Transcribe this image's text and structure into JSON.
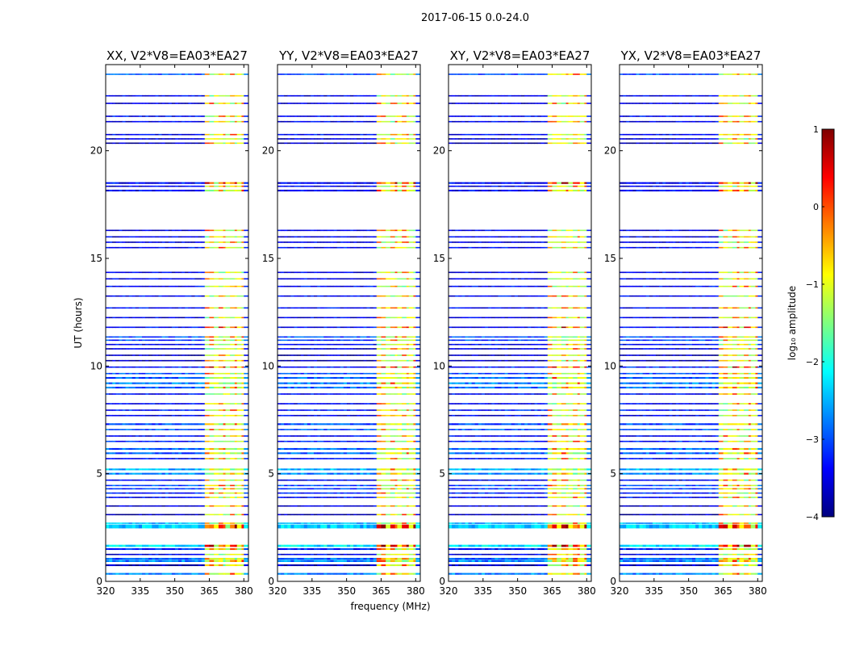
{
  "figure": {
    "suptitle": "2017-06-15 0.0-24.0",
    "xlabel": "frequency (MHz)",
    "ylabel": "UT (hours)"
  },
  "chart_data": {
    "type": "heatmap",
    "x_range": [
      320,
      382
    ],
    "y_range": [
      0,
      24
    ],
    "x_ticks": [
      320,
      335,
      350,
      365,
      380
    ],
    "y_ticks": [
      0,
      5,
      10,
      15,
      20
    ],
    "panels": [
      {
        "title": "XX, V2*V8=EA03*EA27",
        "pol": "XX",
        "band_offset": 0
      },
      {
        "title": "YY, V2*V8=EA03*EA27",
        "pol": "YY",
        "band_offset": 0
      },
      {
        "title": "XY, V2*V8=EA03*EA27",
        "pol": "XY",
        "band_offset": 0
      },
      {
        "title": "YX, V2*V8=EA03*EA27",
        "pol": "YX",
        "band_offset": 0
      }
    ],
    "time_rows": [
      {
        "t": 0.35,
        "level": 0.25,
        "w": 0.08
      },
      {
        "t": 0.75,
        "level": 0.05,
        "w": 0.08
      },
      {
        "t": 0.95,
        "level": 0.25,
        "w": 0.1
      },
      {
        "t": 1.05,
        "level": 0.22,
        "w": 0.08
      },
      {
        "t": 1.25,
        "level": 0.1,
        "w": 0.06
      },
      {
        "t": 1.5,
        "level": 0.15,
        "w": 0.08
      },
      {
        "t": 1.65,
        "level": 0.35,
        "w": 0.1,
        "hot": true
      },
      {
        "t": 2.55,
        "level": 0.32,
        "w": 0.18,
        "hot": true
      },
      {
        "t": 2.7,
        "level": 0.3,
        "w": 0.06
      },
      {
        "t": 3.1,
        "level": 0.05,
        "w": 0.06
      },
      {
        "t": 3.5,
        "level": 0.08,
        "w": 0.06
      },
      {
        "t": 3.9,
        "level": 0.12,
        "w": 0.06
      },
      {
        "t": 4.1,
        "level": 0.15,
        "w": 0.06
      },
      {
        "t": 4.3,
        "level": 0.18,
        "w": 0.06
      },
      {
        "t": 4.45,
        "level": 0.2,
        "w": 0.06
      },
      {
        "t": 4.7,
        "level": 0.1,
        "w": 0.06
      },
      {
        "t": 5.0,
        "level": 0.25,
        "w": 0.08
      },
      {
        "t": 5.2,
        "level": 0.3,
        "w": 0.08
      },
      {
        "t": 5.7,
        "level": 0.12,
        "w": 0.06
      },
      {
        "t": 5.95,
        "level": 0.22,
        "w": 0.08
      },
      {
        "t": 6.15,
        "level": 0.22,
        "w": 0.08
      },
      {
        "t": 6.5,
        "level": 0.15,
        "w": 0.06
      },
      {
        "t": 6.75,
        "level": 0.12,
        "w": 0.06
      },
      {
        "t": 7.05,
        "level": 0.2,
        "w": 0.06
      },
      {
        "t": 7.3,
        "level": 0.2,
        "w": 0.08
      },
      {
        "t": 7.7,
        "level": 0.1,
        "w": 0.06
      },
      {
        "t": 7.95,
        "level": 0.15,
        "w": 0.06
      },
      {
        "t": 8.25,
        "level": 0.12,
        "w": 0.06
      },
      {
        "t": 8.7,
        "level": 0.12,
        "w": 0.06
      },
      {
        "t": 9.0,
        "level": 0.22,
        "w": 0.08
      },
      {
        "t": 9.2,
        "level": 0.25,
        "w": 0.08
      },
      {
        "t": 9.45,
        "level": 0.22,
        "w": 0.08
      },
      {
        "t": 9.65,
        "level": 0.2,
        "w": 0.06
      },
      {
        "t": 9.95,
        "level": 0.15,
        "w": 0.06,
        "hot": true
      },
      {
        "t": 10.25,
        "level": 0.05,
        "w": 0.06
      },
      {
        "t": 10.5,
        "level": 0.05,
        "w": 0.06
      },
      {
        "t": 10.8,
        "level": 0.08,
        "w": 0.06
      },
      {
        "t": 11.0,
        "level": 0.12,
        "w": 0.06
      },
      {
        "t": 11.2,
        "level": 0.18,
        "w": 0.06
      },
      {
        "t": 11.35,
        "level": 0.2,
        "w": 0.06
      },
      {
        "t": 11.8,
        "level": 0.12,
        "w": 0.06,
        "hot": true
      },
      {
        "t": 12.25,
        "level": 0.1,
        "w": 0.06
      },
      {
        "t": 12.7,
        "level": 0.12,
        "w": 0.06
      },
      {
        "t": 13.25,
        "level": 0.12,
        "w": 0.06
      },
      {
        "t": 13.7,
        "level": 0.12,
        "w": 0.06
      },
      {
        "t": 14.05,
        "level": 0.1,
        "w": 0.06
      },
      {
        "t": 14.35,
        "level": 0.1,
        "w": 0.06
      },
      {
        "t": 15.5,
        "level": 0.12,
        "w": 0.06
      },
      {
        "t": 15.75,
        "level": 0.1,
        "w": 0.06
      },
      {
        "t": 16.0,
        "level": 0.1,
        "w": 0.06
      },
      {
        "t": 16.3,
        "level": 0.1,
        "w": 0.06
      },
      {
        "t": 18.15,
        "level": 0.12,
        "w": 0.08
      },
      {
        "t": 18.35,
        "level": 0.1,
        "w": 0.06
      },
      {
        "t": 18.5,
        "level": 0.12,
        "w": 0.08,
        "hot": true
      },
      {
        "t": 20.35,
        "level": 0.05,
        "w": 0.06
      },
      {
        "t": 20.55,
        "level": 0.08,
        "w": 0.06
      },
      {
        "t": 20.75,
        "level": 0.12,
        "w": 0.06
      },
      {
        "t": 21.35,
        "level": 0.1,
        "w": 0.06
      },
      {
        "t": 21.6,
        "level": 0.12,
        "w": 0.06
      },
      {
        "t": 22.2,
        "level": 0.08,
        "w": 0.06
      },
      {
        "t": 22.55,
        "level": 0.1,
        "w": 0.06
      },
      {
        "t": 23.55,
        "level": 0.2,
        "w": 0.06
      }
    ],
    "colorbar": {
      "label": "log₁₀ amplitude",
      "range": [
        -4,
        1
      ],
      "ticks": [
        1,
        0,
        -1,
        -2,
        -3,
        -4
      ],
      "tick_labels": [
        "1",
        "0",
        "−1",
        "−2",
        "−3",
        "−4"
      ],
      "colormap": "jet"
    },
    "palette": {
      "axis": "#000000",
      "background": "#ffffff",
      "jet": [
        "#00007f",
        "#0000ff",
        "#007fff",
        "#00ffff",
        "#7fff7f",
        "#ffff00",
        "#ff7f00",
        "#ff0000",
        "#7f0000"
      ]
    }
  }
}
